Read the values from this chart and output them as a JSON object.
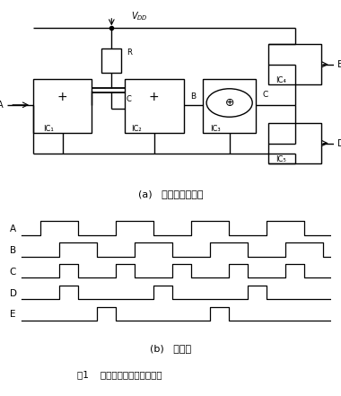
{
  "title_a": "(a)   经典脉冲分解器",
  "title_b": "(b)   时序图",
  "caption": "图1    经典脉冲分解器及时序图",
  "signal_A": [
    0,
    1,
    1,
    0,
    0,
    1,
    1,
    0,
    0,
    1,
    1,
    0,
    0,
    1,
    1,
    0,
    0
  ],
  "signal_B": [
    0,
    0,
    1,
    1,
    0,
    0,
    1,
    1,
    0,
    0,
    1,
    1,
    0,
    0,
    1,
    1,
    0
  ],
  "signal_C": [
    0,
    0,
    1,
    0,
    0,
    1,
    0,
    0,
    1,
    0,
    0,
    1,
    0,
    0,
    1,
    0,
    0
  ],
  "signal_D": [
    0,
    0,
    1,
    0,
    0,
    0,
    0,
    1,
    0,
    0,
    0,
    0,
    1,
    0,
    0,
    0,
    0
  ],
  "signal_E": [
    0,
    0,
    0,
    0,
    1,
    0,
    0,
    0,
    0,
    0,
    1,
    0,
    0,
    0,
    0,
    0,
    0
  ],
  "circuit_bg": "white",
  "line_color": "black"
}
